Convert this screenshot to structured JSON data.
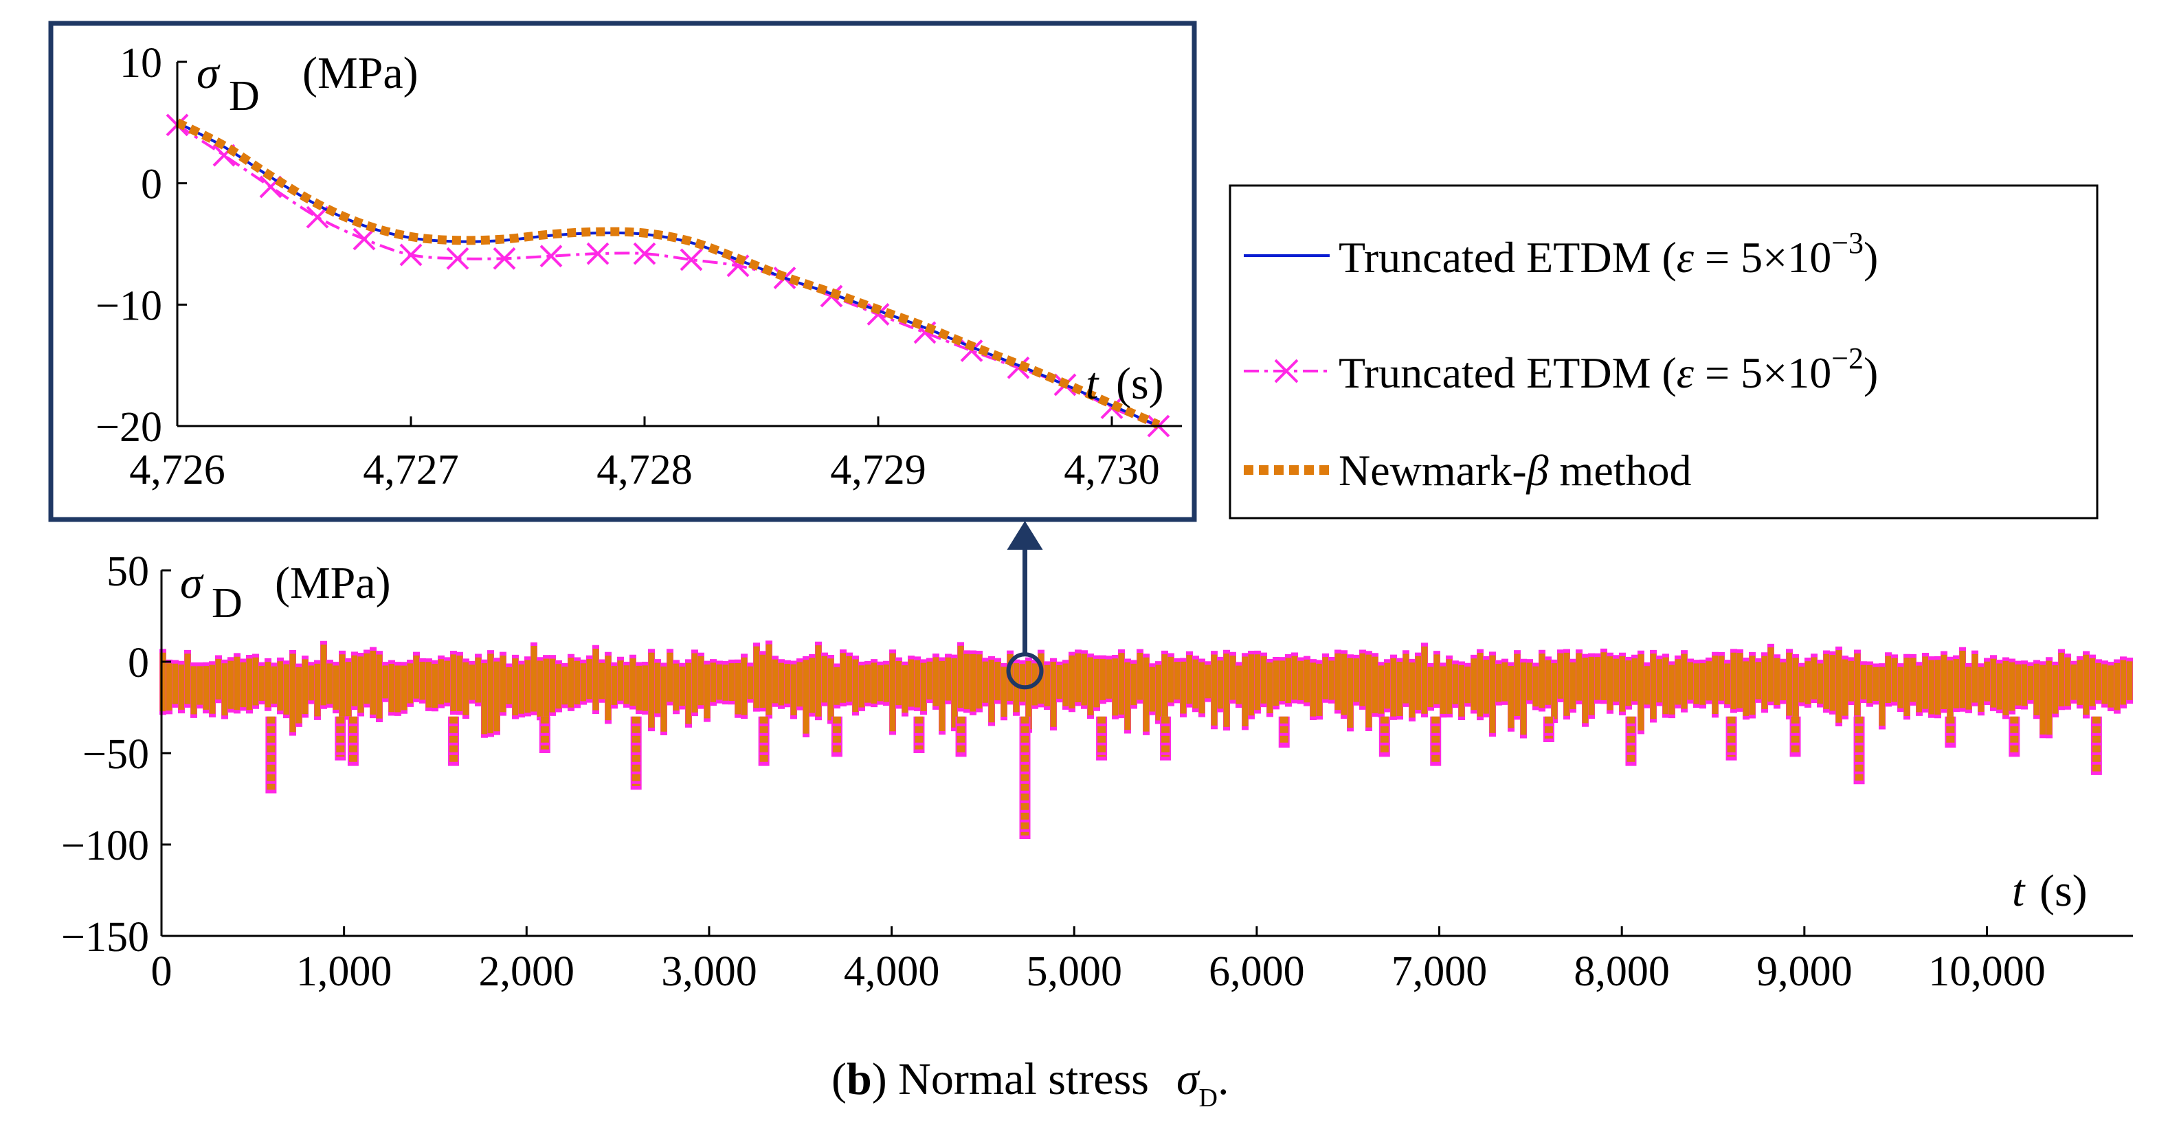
{
  "colors": {
    "etdm_small": "#0a1ed2",
    "etdm_large": "#ff28e6",
    "newmark": "#df7b0c",
    "frame": "#1f3864",
    "axis": "#000000"
  },
  "caption": {
    "open_paren": "(",
    "letter": "b",
    "text": ") Normal stress",
    "symbol": "σ",
    "subscript": "D",
    "end": "."
  },
  "chart_data": [
    {
      "id": "main",
      "type": "line",
      "xlabel": {
        "var": "t",
        "unit": "(s)"
      },
      "ylabel": {
        "symbol": "σ",
        "sub": "D",
        "unit": "(MPa)"
      },
      "xlim": [
        0,
        10800
      ],
      "ylim": [
        -150,
        50
      ],
      "xticks": [
        0,
        1000,
        2000,
        3000,
        4000,
        5000,
        6000,
        7000,
        8000,
        9000,
        10000
      ],
      "xtick_labels": [
        "0",
        "1,000",
        "2,000",
        "3,000",
        "4,000",
        "5,000",
        "6,000",
        "7,000",
        "8,000",
        "9,000",
        "10,000"
      ],
      "yticks": [
        50,
        0,
        -50,
        -100,
        -150
      ],
      "ytick_labels": [
        "50",
        "0",
        "−50",
        "−100",
        "−150"
      ],
      "band": {
        "upper_typical": 5,
        "lower_typical": -30
      },
      "spikes": [
        {
          "t": 600,
          "min": -70
        },
        {
          "t": 980,
          "min": -52
        },
        {
          "t": 1050,
          "min": -55
        },
        {
          "t": 1600,
          "min": -55
        },
        {
          "t": 2100,
          "min": -48
        },
        {
          "t": 2600,
          "min": -68
        },
        {
          "t": 3300,
          "min": -55
        },
        {
          "t": 3700,
          "min": -50
        },
        {
          "t": 4150,
          "min": -48
        },
        {
          "t": 4380,
          "min": -50
        },
        {
          "t": 4730,
          "min": -95
        },
        {
          "t": 5150,
          "min": -52
        },
        {
          "t": 5500,
          "min": -52
        },
        {
          "t": 6150,
          "min": -45
        },
        {
          "t": 6700,
          "min": -50
        },
        {
          "t": 6980,
          "min": -55
        },
        {
          "t": 7600,
          "min": -42
        },
        {
          "t": 8050,
          "min": -55
        },
        {
          "t": 8600,
          "min": -52
        },
        {
          "t": 8950,
          "min": -50
        },
        {
          "t": 9300,
          "min": -65
        },
        {
          "t": 9800,
          "min": -45
        },
        {
          "t": 10150,
          "min": -50
        },
        {
          "t": 10600,
          "min": -60
        }
      ],
      "marker": {
        "t": 4730,
        "value": -5
      }
    },
    {
      "id": "inset",
      "type": "line",
      "xlabel": {
        "var": "t",
        "unit": "(s)"
      },
      "ylabel": {
        "symbol": "σ",
        "sub": "D",
        "unit": "(MPa)"
      },
      "xlim": [
        4726,
        4730.3
      ],
      "ylim": [
        -20,
        10
      ],
      "xticks": [
        4726,
        4727,
        4728,
        4729,
        4730
      ],
      "xtick_labels": [
        "4,726",
        "4,727",
        "4,728",
        "4,729",
        "4,730"
      ],
      "yticks": [
        10,
        0,
        -10,
        -20
      ],
      "ytick_labels": [
        "10",
        "0",
        "−10",
        "−20"
      ],
      "series": [
        {
          "name": "Truncated ETDM (ε = 5×10−3)",
          "style": "solid",
          "x": [
            4726.0,
            4726.2,
            4726.4,
            4726.6,
            4726.8,
            4727.0,
            4727.2,
            4727.4,
            4727.6,
            4727.8,
            4728.0,
            4728.2,
            4728.4,
            4728.6,
            4728.8,
            4729.0,
            4729.2,
            4729.4,
            4729.6,
            4729.8,
            4730.0,
            4730.2
          ],
          "y": [
            5.0,
            3.0,
            0.5,
            -1.8,
            -3.5,
            -4.5,
            -4.8,
            -4.7,
            -4.3,
            -4.1,
            -4.2,
            -4.9,
            -6.3,
            -7.8,
            -9.1,
            -10.5,
            -11.9,
            -13.5,
            -15.0,
            -16.6,
            -18.3,
            -20.0
          ]
        },
        {
          "name": "Truncated ETDM (ε = 5×10−2)",
          "style": "dashdot-x",
          "x": [
            4726.0,
            4726.2,
            4726.4,
            4726.6,
            4726.8,
            4727.0,
            4727.2,
            4727.4,
            4727.6,
            4727.8,
            4728.0,
            4728.2,
            4728.4,
            4728.6,
            4728.8,
            4729.0,
            4729.2,
            4729.4,
            4729.6,
            4729.8,
            4730.0,
            4730.2
          ],
          "y": [
            4.8,
            2.3,
            -0.3,
            -2.8,
            -4.6,
            -5.9,
            -6.2,
            -6.2,
            -6.0,
            -5.8,
            -5.8,
            -6.3,
            -6.8,
            -7.8,
            -9.3,
            -10.8,
            -12.3,
            -13.8,
            -15.2,
            -16.6,
            -18.5,
            -20.0
          ]
        },
        {
          "name": "Newmark-β method",
          "style": "dotted-thick",
          "x": [
            4726.0,
            4726.2,
            4726.4,
            4726.6,
            4726.8,
            4727.0,
            4727.2,
            4727.4,
            4727.6,
            4727.8,
            4728.0,
            4728.2,
            4728.4,
            4728.6,
            4728.8,
            4729.0,
            4729.2,
            4729.4,
            4729.6,
            4729.8,
            4730.0,
            4730.2
          ],
          "y": [
            5.0,
            3.1,
            0.6,
            -1.7,
            -3.4,
            -4.4,
            -4.7,
            -4.6,
            -4.2,
            -4.0,
            -4.1,
            -4.8,
            -6.2,
            -7.7,
            -9.0,
            -10.4,
            -11.8,
            -13.4,
            -14.9,
            -16.5,
            -18.2,
            -19.9
          ]
        }
      ]
    }
  ],
  "legend": [
    {
      "prefix": "Truncated ETDM (",
      "greek": "ε",
      "mid": " = 5×10",
      "exp": "−3",
      "suffix": ")"
    },
    {
      "prefix": "Truncated ETDM (",
      "greek": "ε",
      "mid": " = 5×10",
      "exp": "−2",
      "suffix": ")"
    },
    {
      "prefix": "Newmark-",
      "greek": "β",
      "mid": " method",
      "exp": "",
      "suffix": ""
    }
  ]
}
